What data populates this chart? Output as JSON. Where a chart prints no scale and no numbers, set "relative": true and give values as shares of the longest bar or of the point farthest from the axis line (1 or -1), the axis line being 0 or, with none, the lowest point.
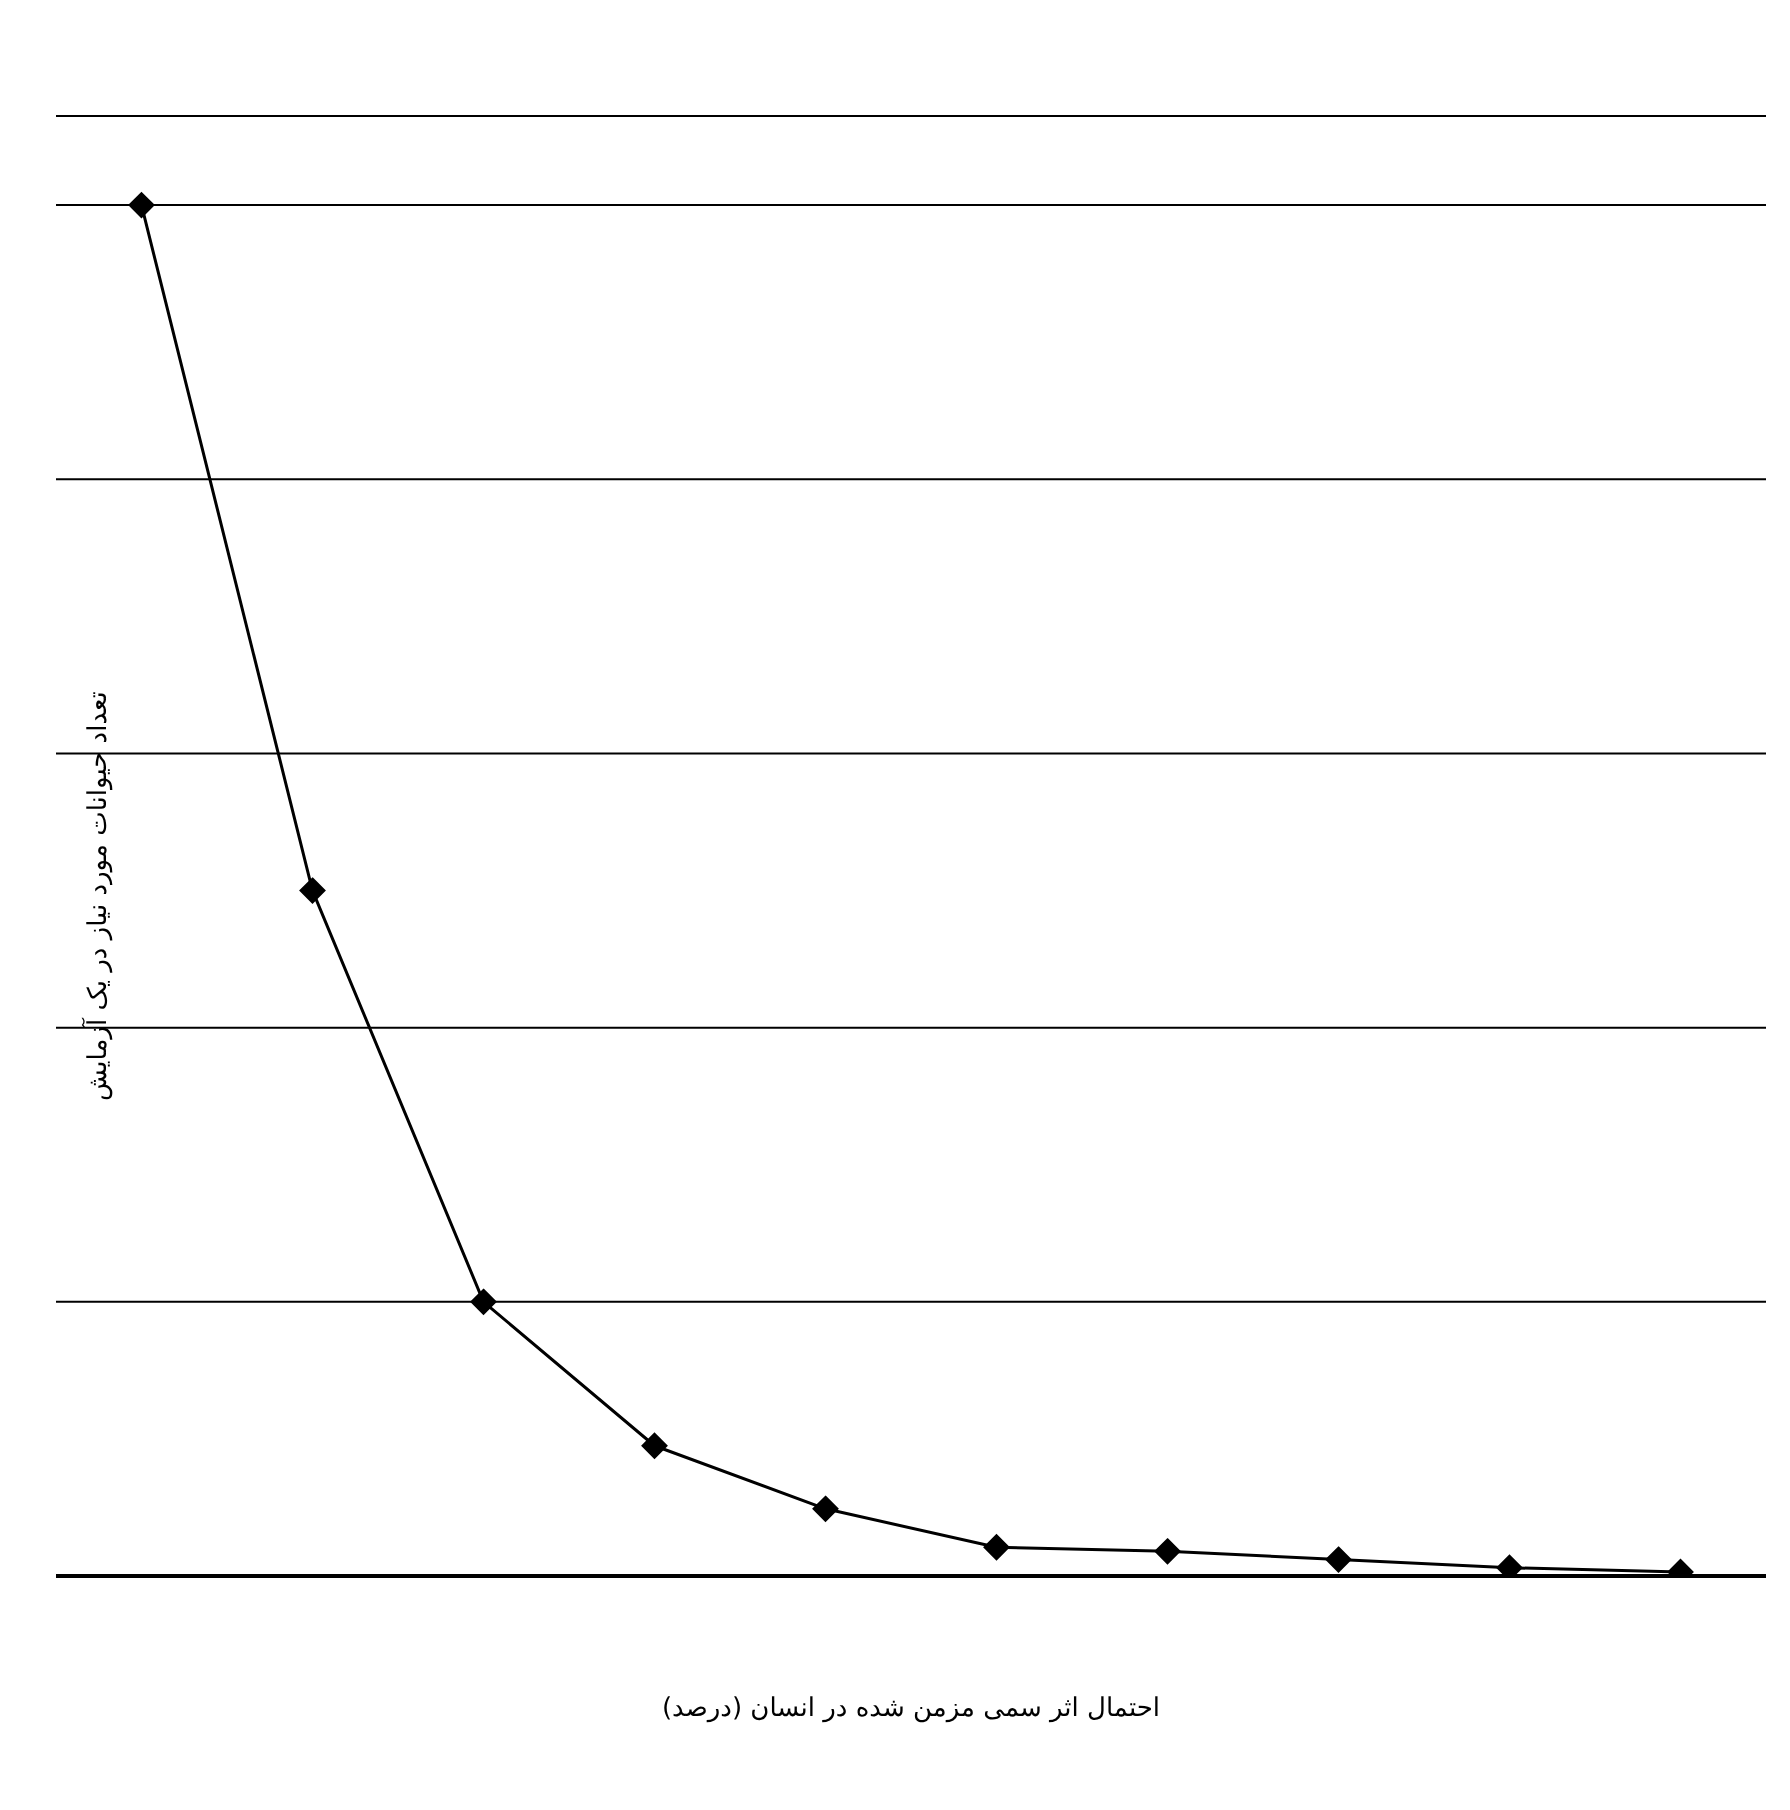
{
  "chart_data": {
    "type": "line",
    "xlabel": "احتمال اثر سمی مزمن شده در انسان (درصد)",
    "ylabel": "تعداد حیوانات مورد نیاز در یک آزمایش",
    "relative": true,
    "categories": [
      null,
      null,
      null,
      null,
      null,
      null,
      null,
      null,
      null,
      null
    ],
    "series": [
      {
        "color": "#000000",
        "values": [
          1,
          0.5,
          0.2,
          0.095,
          0.049,
          0.021,
          0.018,
          0.012,
          0.006,
          0.003
        ]
      }
    ],
    "grid": "y",
    "marker": "diamond",
    "line_style": "solid"
  }
}
